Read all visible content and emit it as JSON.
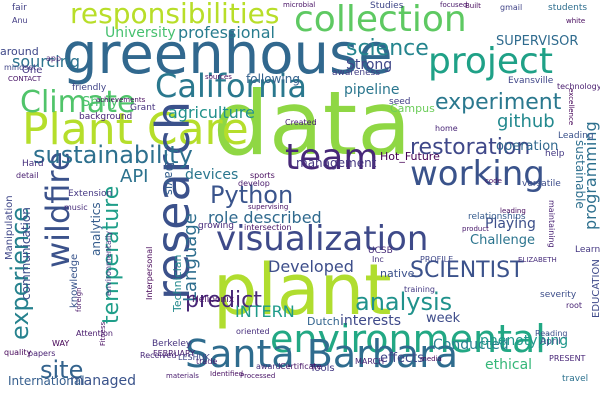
{
  "word_cloud": {
    "words": [
      "data",
      "plant",
      "greenhouse",
      "Plant Care",
      "research",
      "environmental",
      "Santa Barbara",
      "visualization",
      "team",
      "collection",
      "project",
      "working",
      "responsibilities",
      "California",
      "Climate",
      "wildfire",
      "sustainability",
      "experience",
      "analysis",
      "experiment",
      "SCIENTIST",
      "Python",
      "restoration",
      "temperature",
      "science",
      "predict",
      "professional",
      "role described",
      "site",
      "Developed",
      "API",
      "Language",
      "INTERN",
      "github",
      "programming",
      "devices",
      "agriculture",
      "Conducted",
      "interests",
      "communication",
      "sourcing",
      "University",
      "Strong",
      "management",
      "managed",
      "phenotyping",
      "pipeline",
      "ethical",
      "operation",
      "Playing",
      "Challenge",
      "Hot_Future",
      "relationships",
      "week",
      "effects",
      "SUPERVISOR",
      "Davis",
      "Technician",
      "analytics",
      "sustainable",
      "following",
      "native",
      "knowledge",
      "EDUCATION",
      "Dutch",
      "International",
      "Berkeley",
      "Tools",
      "UCSB",
      "severity",
      "Shiny",
      "Campus",
      "seed",
      "Manipulation",
      "Evansville",
      "students",
      "gmail",
      "Studies",
      "background",
      "Grant",
      "awareness",
      "Extension",
      "Heliponix",
      "MARCH",
      "April",
      "FEBRUARY",
      "Certificate",
      "PRESENT",
      "travel",
      "Reading",
      "papers",
      "quality",
      "around",
      "mindset",
      "One",
      "CONTACT",
      "fair",
      "Anu",
      "microbial",
      "focused",
      "Built",
      "friendly",
      "leading",
      "Created",
      "sports",
      "develop",
      "supervising",
      "growing",
      "intersection",
      "PROFILE",
      "ELIZABETH",
      "training",
      "Inc",
      "Received",
      "Fitness",
      "trade",
      "oriented",
      "environmentally",
      "Interpersonal",
      "Attention",
      "WAY",
      "foreign",
      "Hard",
      "detail",
      "music",
      "white",
      "technology",
      "excellence",
      "home",
      "versatile",
      "help",
      "code",
      "product",
      "Learning",
      "maintaining",
      "materials",
      "award",
      "Identified",
      "Processed",
      "LESHUK",
      "achievements",
      "app",
      "sources",
      "Leading",
      "root",
      "media"
    ]
  }
}
